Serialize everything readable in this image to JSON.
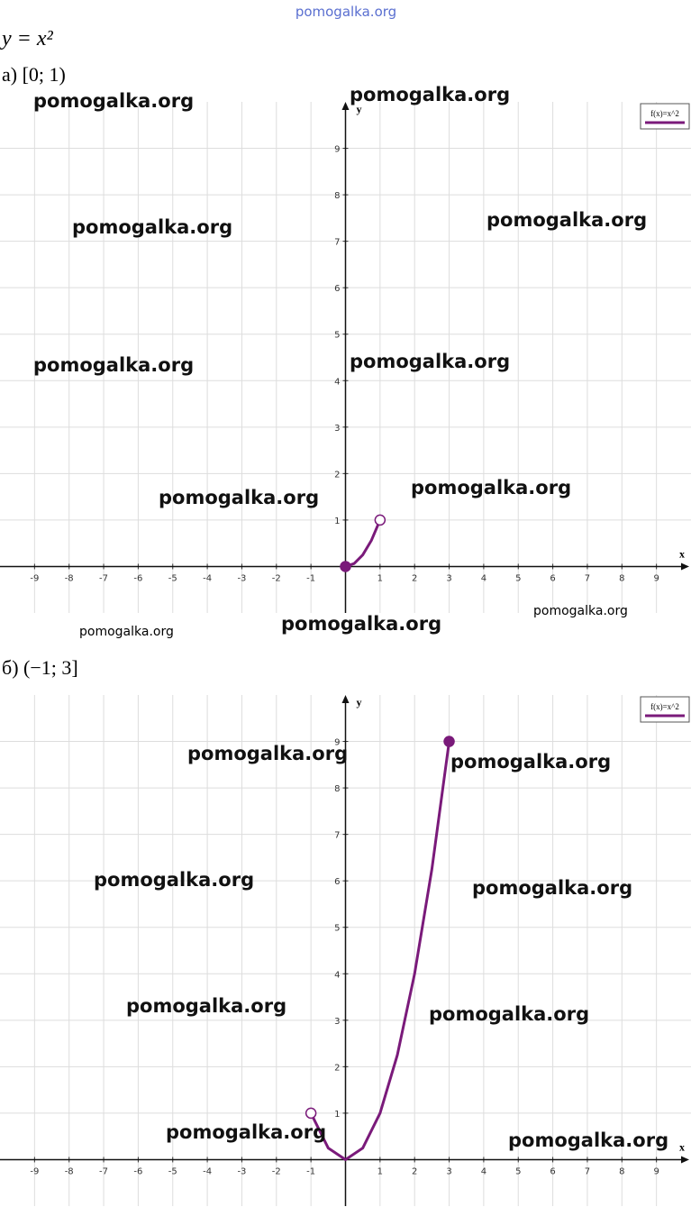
{
  "watermark": "pomogalka.org",
  "formula": "y = x²",
  "chart_data": [
    {
      "type": "line",
      "title": "а) [0; 1)",
      "xlabel": "x",
      "ylabel": "y",
      "legend": "f(x)=x^2",
      "xlim": [
        -10,
        10
      ],
      "ylim": [
        -1,
        10
      ],
      "xticks": [
        -9,
        -8,
        -7,
        -6,
        -5,
        -4,
        -3,
        -2,
        -1,
        1,
        2,
        3,
        4,
        5,
        6,
        7,
        8,
        9
      ],
      "yticks": [
        1,
        2,
        3,
        4,
        5,
        6,
        7,
        8,
        9
      ],
      "grid": true,
      "series": [
        {
          "name": "f(x)=x^2",
          "color": "#7a1a7a",
          "x": [
            0,
            0.25,
            0.5,
            0.75,
            1
          ],
          "values": [
            0,
            0.0625,
            0.25,
            0.5625,
            1
          ],
          "endpoints": [
            "filled",
            "open"
          ]
        }
      ]
    },
    {
      "type": "line",
      "title": "б) (−1; 3]",
      "xlabel": "x",
      "ylabel": "y",
      "legend": "f(x)=x^2",
      "xlim": [
        -10,
        10
      ],
      "ylim": [
        -1,
        10
      ],
      "xticks": [
        -9,
        -8,
        -7,
        -6,
        -5,
        -4,
        -3,
        -2,
        -1,
        1,
        2,
        3,
        4,
        5,
        6,
        7,
        8,
        9
      ],
      "yticks": [
        1,
        2,
        3,
        4,
        5,
        6,
        7,
        8,
        9
      ],
      "grid": true,
      "series": [
        {
          "name": "f(x)=x^2",
          "color": "#7a1a7a",
          "x": [
            -1,
            -0.5,
            0,
            0.5,
            1,
            1.5,
            2,
            2.5,
            3
          ],
          "values": [
            1,
            0.25,
            0,
            0.25,
            1,
            2.25,
            4,
            6.25,
            9
          ],
          "endpoints": [
            "open",
            "filled"
          ]
        }
      ]
    }
  ]
}
